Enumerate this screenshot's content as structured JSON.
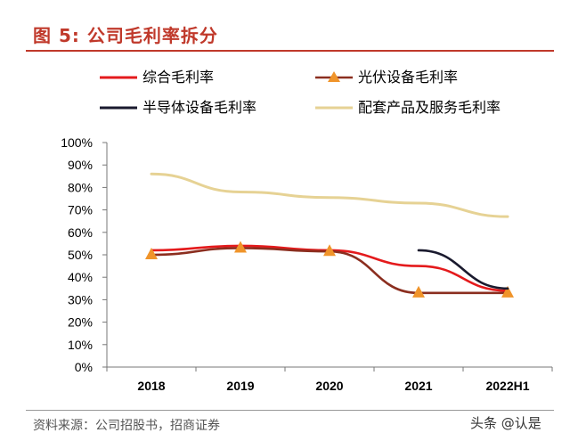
{
  "header": {
    "title": "图 5:  公司毛利率拆分"
  },
  "legend": [
    {
      "label": "综合毛利率",
      "series": 0
    },
    {
      "label": "光伏设备毛利率",
      "series": 1
    },
    {
      "label": "半导体设备毛利率",
      "series": 2
    },
    {
      "label": "配套产品及服务毛利率",
      "series": 3
    }
  ],
  "chart_data": {
    "type": "line",
    "title": "公司毛利率拆分",
    "categories": [
      "2018",
      "2019",
      "2020",
      "2021",
      "2022H1"
    ],
    "ylim": [
      0,
      100
    ],
    "y_ticks": [
      "100%",
      "90%",
      "80%",
      "70%",
      "60%",
      "50%",
      "40%",
      "30%",
      "20%",
      "10%",
      "0%"
    ],
    "series": [
      {
        "name": "综合毛利率",
        "color": "#e41a1c",
        "marker": "none",
        "values": [
          52,
          54,
          52,
          45,
          34
        ]
      },
      {
        "name": "光伏设备毛利率",
        "color": "#8b2e1f",
        "marker": "triangle",
        "marker_color": "#f0942a",
        "values": [
          50,
          53,
          51.5,
          33,
          33
        ]
      },
      {
        "name": "半导体设备毛利率",
        "color": "#1a1a2e",
        "marker": "none",
        "values": [
          null,
          null,
          null,
          52,
          35
        ]
      },
      {
        "name": "配套产品及服务毛利率",
        "color": "#e6d294",
        "marker": "none",
        "values": [
          86,
          78,
          75.5,
          73,
          67
        ]
      }
    ]
  },
  "footer": {
    "source": "资料来源：公司招股书，招商证券",
    "watermark": "头条 @认是"
  }
}
